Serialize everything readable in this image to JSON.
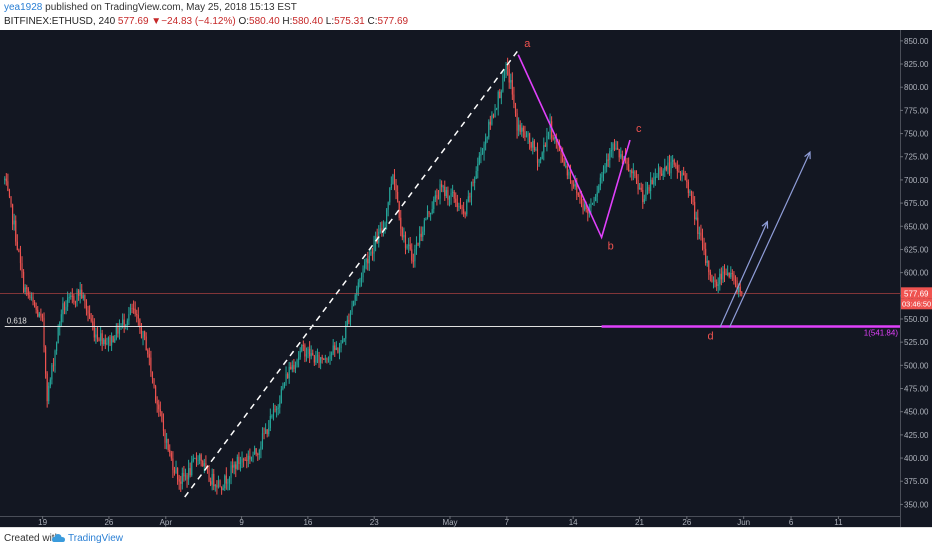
{
  "header": {
    "user": "yea1928",
    "published": "published on TradingView.com, May 25, 2018 15:13 EST",
    "symbol": "BITFINEX:ETHUSD, 240",
    "last": "577.69",
    "change": "−24.83 (−4.12%)",
    "o_label": "O:",
    "o_value": "580.40",
    "h_label": "H:",
    "h_value": "580.40",
    "l_label": "L:",
    "l_value": "575.31",
    "c_label": "C:",
    "c_value": "577.69"
  },
  "footer": {
    "created_with": "Created with",
    "brand": "TradingView",
    "logo_icon": "tradingview-cloud-icon"
  },
  "colors": {
    "background": "#131722",
    "up": "#26a69a",
    "down": "#ef5350",
    "pattern": "#e040fb",
    "fib_line": "#e0e0e0",
    "arrow": "#8f9dd8",
    "price_label_bg": "#ef5350"
  },
  "chart_data": {
    "type": "candlestick",
    "y_ticks": [
      350,
      375,
      400,
      425,
      450,
      475,
      500,
      525,
      550,
      575,
      600,
      625,
      650,
      675,
      700,
      725,
      750,
      775,
      800,
      825,
      850
    ],
    "ylim": [
      337.5,
      861.7
    ],
    "x_ticks": [
      "19",
      "26",
      "Apr",
      "9",
      "16",
      "23",
      "May",
      "7",
      "14",
      "21",
      "26",
      "Jun",
      "6",
      "11"
    ],
    "x_tick_days": [
      -12,
      -5,
      1,
      9,
      16,
      23,
      31,
      37,
      44,
      51,
      56,
      62,
      67,
      72
    ],
    "xlim": [
      -16.5,
      78.5
    ],
    "grid": false,
    "last_price": "577.69",
    "countdown": "03:46:50",
    "anchors": [
      {
        "day": -16.0,
        "price": 700
      },
      {
        "day": -15.0,
        "price": 650
      },
      {
        "day": -14.0,
        "price": 585
      },
      {
        "day": -12.0,
        "price": 545
      },
      {
        "day": -11.5,
        "price": 465
      },
      {
        "day": -10.0,
        "price": 560
      },
      {
        "day": -8.0,
        "price": 580
      },
      {
        "day": -6.5,
        "price": 535
      },
      {
        "day": -5.0,
        "price": 525
      },
      {
        "day": -2.5,
        "price": 560
      },
      {
        "day": -1.0,
        "price": 520
      },
      {
        "day": -0.5,
        "price": 490
      },
      {
        "day": 0.5,
        "price": 440
      },
      {
        "day": 1.5,
        "price": 400
      },
      {
        "day": 2.5,
        "price": 375
      },
      {
        "day": 3.5,
        "price": 385
      },
      {
        "day": 4.5,
        "price": 405
      },
      {
        "day": 5.5,
        "price": 378
      },
      {
        "day": 7.0,
        "price": 372
      },
      {
        "day": 8.5,
        "price": 395
      },
      {
        "day": 10.5,
        "price": 405
      },
      {
        "day": 12.5,
        "price": 450
      },
      {
        "day": 14.0,
        "price": 495
      },
      {
        "day": 15.5,
        "price": 518
      },
      {
        "day": 17.0,
        "price": 505
      },
      {
        "day": 19.5,
        "price": 520
      },
      {
        "day": 20.5,
        "price": 560
      },
      {
        "day": 22.0,
        "price": 610
      },
      {
        "day": 24.0,
        "price": 650
      },
      {
        "day": 25.0,
        "price": 710
      },
      {
        "day": 26.0,
        "price": 640
      },
      {
        "day": 27.0,
        "price": 615
      },
      {
        "day": 28.5,
        "price": 660
      },
      {
        "day": 30.0,
        "price": 690
      },
      {
        "day": 31.5,
        "price": 680
      },
      {
        "day": 32.5,
        "price": 660
      },
      {
        "day": 34.0,
        "price": 720
      },
      {
        "day": 35.5,
        "price": 770
      },
      {
        "day": 37.0,
        "price": 820
      },
      {
        "day": 37.5,
        "price": 800
      },
      {
        "day": 38.0,
        "price": 760
      },
      {
        "day": 39.5,
        "price": 740
      },
      {
        "day": 40.5,
        "price": 720
      },
      {
        "day": 41.5,
        "price": 758
      },
      {
        "day": 43.0,
        "price": 720
      },
      {
        "day": 44.5,
        "price": 685
      },
      {
        "day": 45.5,
        "price": 665
      },
      {
        "day": 46.5,
        "price": 690
      },
      {
        "day": 48.0,
        "price": 738
      },
      {
        "day": 49.0,
        "price": 725
      },
      {
        "day": 50.5,
        "price": 700
      },
      {
        "day": 51.5,
        "price": 680
      },
      {
        "day": 53.0,
        "price": 710
      },
      {
        "day": 54.5,
        "price": 715
      },
      {
        "day": 56.0,
        "price": 700
      },
      {
        "day": 57.0,
        "price": 655
      },
      {
        "day": 58.0,
        "price": 612
      },
      {
        "day": 59.0,
        "price": 585
      },
      {
        "day": 60.0,
        "price": 605
      },
      {
        "day": 61.0,
        "price": 590
      },
      {
        "day": 61.8,
        "price": 578
      }
    ],
    "fib_level": {
      "label": "0.618",
      "price": 541.84
    },
    "fib_retrace_line": {
      "from": {
        "day": 3,
        "price": 358
      },
      "to": {
        "day": 38.2,
        "price": 840
      }
    },
    "pattern": {
      "points": [
        {
          "label": "a",
          "day": 38.2,
          "price": 835
        },
        {
          "label": "b",
          "day": 47.0,
          "price": 638
        },
        {
          "label": "c",
          "day": 50.0,
          "price": 743
        }
      ],
      "d_label": "d",
      "d_point": {
        "day": 58.5,
        "price": 528
      }
    },
    "target_line": {
      "label": "1(541.84)",
      "price": 541.84,
      "from_day": 47.0
    },
    "arrows": [
      {
        "from": {
          "day": 59.5,
          "price": 541
        },
        "to": {
          "day": 64.5,
          "price": 655
        }
      },
      {
        "from": {
          "day": 60.5,
          "price": 541
        },
        "to": {
          "day": 69.0,
          "price": 730
        }
      }
    ]
  }
}
